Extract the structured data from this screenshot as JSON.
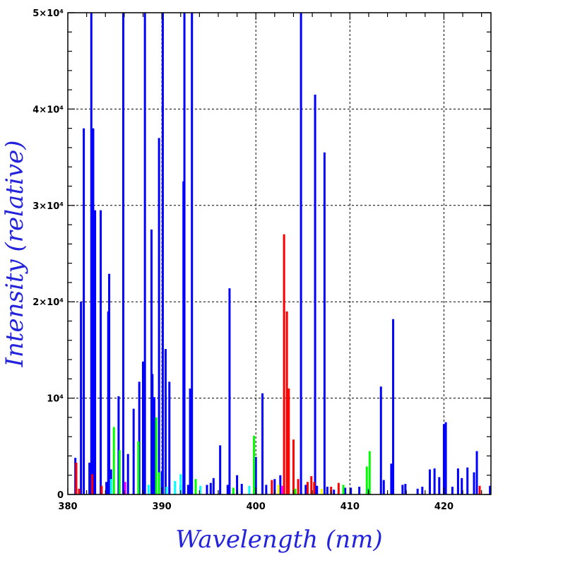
{
  "chart_data": {
    "type": "bar",
    "xlabel": "Wavelength (nm)",
    "ylabel": "Intensity (relative)",
    "xlim": [
      380,
      425
    ],
    "ylim": [
      0,
      50000
    ],
    "grid": true,
    "x_ticks": [
      {
        "value": 380,
        "label": "380"
      },
      {
        "value": 390,
        "label": "390"
      },
      {
        "value": 400,
        "label": "400"
      },
      {
        "value": 410,
        "label": "410"
      },
      {
        "value": 420,
        "label": "420"
      }
    ],
    "y_ticks": [
      {
        "value": 0,
        "label": "0"
      },
      {
        "value": 10000,
        "label": "10⁴"
      },
      {
        "value": 20000,
        "label": "2×10⁴"
      },
      {
        "value": 30000,
        "label": "3×10⁴"
      },
      {
        "value": 40000,
        "label": "4×10⁴"
      },
      {
        "value": 50000,
        "label": "5×10⁴"
      }
    ],
    "colors": {
      "blue": "#0000ff",
      "red": "#ff0000",
      "green": "#00ff00",
      "cyan": "#00ffff",
      "magenta": "#ff00ff",
      "yellow": "#ffff00",
      "axis_title": "#2323dc"
    },
    "series": [
      {
        "color": "blue",
        "points": [
          [
            380.8,
            3800
          ],
          [
            381.4,
            20000
          ],
          [
            381.7,
            38000
          ],
          [
            382.3,
            3300
          ],
          [
            382.5,
            50000
          ],
          [
            382.7,
            38000
          ],
          [
            382.9,
            29500
          ],
          [
            383.5,
            29500
          ],
          [
            384.1,
            1300
          ],
          [
            384.3,
            19000
          ],
          [
            384.4,
            22900
          ],
          [
            384.6,
            2600
          ],
          [
            385.4,
            10200
          ],
          [
            385.9,
            50000
          ],
          [
            386.4,
            4200
          ],
          [
            387.0,
            8900
          ],
          [
            387.6,
            11700
          ],
          [
            388.0,
            13800
          ],
          [
            388.2,
            50000
          ],
          [
            388.9,
            27500
          ],
          [
            389.0,
            12500
          ],
          [
            389.2,
            10100
          ],
          [
            389.7,
            37000
          ],
          [
            390.0,
            2400
          ],
          [
            390.1,
            50000
          ],
          [
            390.4,
            15100
          ],
          [
            390.8,
            11700
          ],
          [
            392.0,
            1000
          ],
          [
            392.3,
            32500
          ],
          [
            392.4,
            50000
          ],
          [
            392.8,
            1000
          ],
          [
            393.0,
            11000
          ],
          [
            393.2,
            50000
          ],
          [
            394.8,
            1000
          ],
          [
            395.2,
            1200
          ],
          [
            395.5,
            1700
          ],
          [
            396.2,
            5100
          ],
          [
            397.0,
            1000
          ],
          [
            397.2,
            21400
          ],
          [
            398.0,
            2000
          ],
          [
            398.5,
            1100
          ],
          [
            400.0,
            3900
          ],
          [
            400.7,
            10500
          ],
          [
            401.1,
            1000
          ],
          [
            402.0,
            1600
          ],
          [
            402.6,
            2000
          ],
          [
            404.8,
            50000
          ],
          [
            405.3,
            1000
          ],
          [
            406.3,
            41500
          ],
          [
            406.5,
            900
          ],
          [
            407.3,
            35500
          ],
          [
            407.6,
            800
          ],
          [
            408.3,
            500
          ],
          [
            409.5,
            700
          ],
          [
            410.1,
            700
          ],
          [
            411.0,
            800
          ],
          [
            412.0,
            600
          ],
          [
            413.3,
            11200
          ],
          [
            413.6,
            1500
          ],
          [
            414.4,
            3200
          ],
          [
            414.6,
            18200
          ],
          [
            415.6,
            1000
          ],
          [
            415.9,
            1100
          ],
          [
            417.2,
            600
          ],
          [
            417.7,
            800
          ],
          [
            418.5,
            2600
          ],
          [
            419.0,
            2700
          ],
          [
            419.5,
            1800
          ],
          [
            420.0,
            7300
          ],
          [
            420.2,
            7500
          ],
          [
            420.9,
            800
          ],
          [
            421.5,
            2700
          ],
          [
            421.9,
            1700
          ],
          [
            422.5,
            2800
          ],
          [
            423.2,
            2300
          ],
          [
            423.5,
            4500
          ],
          [
            424.9,
            900
          ]
        ]
      },
      {
        "color": "red",
        "points": [
          [
            380.9,
            3300
          ],
          [
            381.2,
            600
          ],
          [
            382.6,
            2100
          ],
          [
            383.6,
            900
          ],
          [
            401.7,
            1500
          ],
          [
            403.0,
            27000
          ],
          [
            403.3,
            19000
          ],
          [
            403.5,
            11000
          ],
          [
            404.0,
            5700
          ],
          [
            404.5,
            1600
          ],
          [
            405.5,
            1300
          ],
          [
            405.9,
            1900
          ],
          [
            406.2,
            1300
          ],
          [
            408.0,
            800
          ],
          [
            408.8,
            1200
          ],
          [
            423.8,
            900
          ]
        ]
      },
      {
        "color": "green",
        "points": [
          [
            384.9,
            7000
          ],
          [
            385.5,
            4600
          ],
          [
            387.5,
            5500
          ],
          [
            389.4,
            8000
          ],
          [
            389.7,
            2300
          ],
          [
            393.6,
            1600
          ],
          [
            397.6,
            700
          ],
          [
            399.8,
            6100
          ],
          [
            404.2,
            600
          ],
          [
            409.3,
            1000
          ],
          [
            411.8,
            2900
          ],
          [
            412.1,
            4500
          ]
        ]
      },
      {
        "color": "cyan",
        "points": [
          [
            384.6,
            1600
          ],
          [
            388.6,
            1000
          ],
          [
            390.5,
            800
          ],
          [
            391.4,
            1400
          ],
          [
            392.0,
            2100
          ],
          [
            394.1,
            900
          ],
          [
            399.3,
            900
          ]
        ]
      },
      {
        "color": "magenta",
        "points": [
          [
            386.1,
            1300
          ],
          [
            402.8,
            900
          ]
        ]
      },
      {
        "color": "yellow",
        "points": [
          [
            402.4,
            1000
          ],
          [
            407.0,
            600
          ]
        ]
      }
    ]
  }
}
